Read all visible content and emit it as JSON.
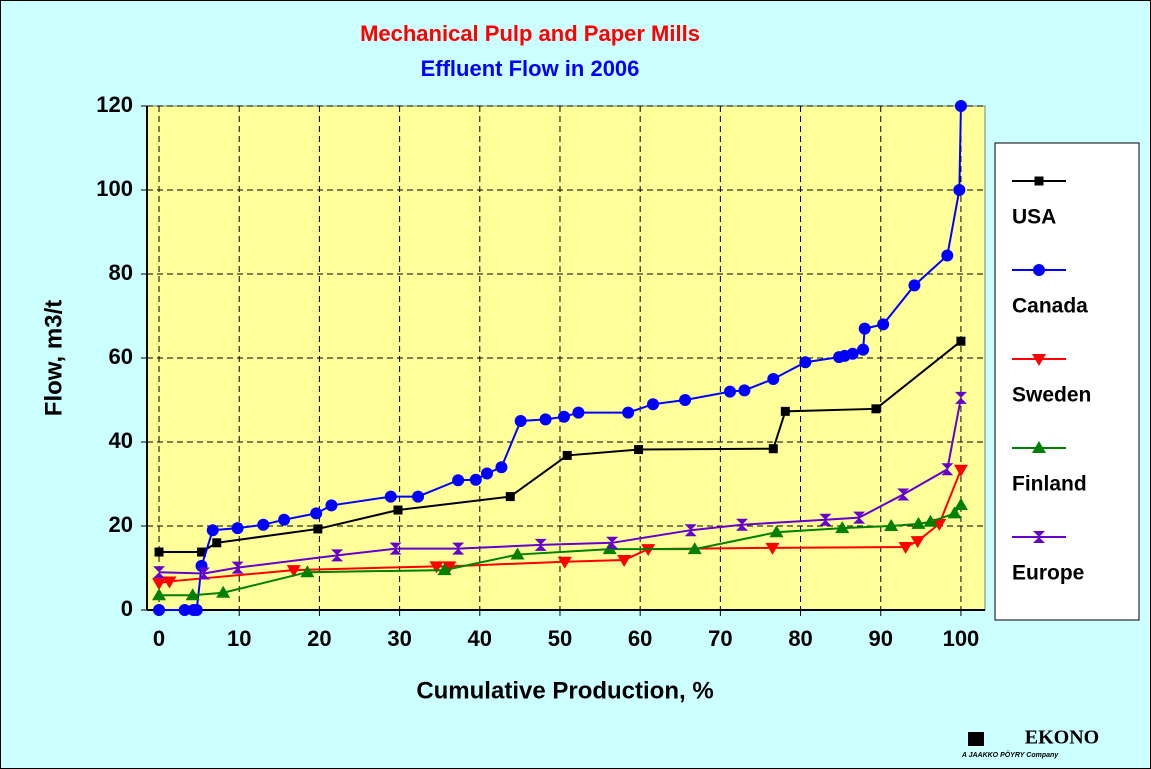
{
  "chart_data": {
    "type": "line",
    "title": "Mechanical Pulp and Paper Mills",
    "subtitle": "Effluent Flow in 2006",
    "x_label": "Cumulative Production, %",
    "y_label": "Flow, m3/t",
    "logo": "EKONO",
    "logo_subtitle": "A JAAKKO PÖYRY Company",
    "xlim": [
      -1.5,
      103
    ],
    "ylim": [
      0,
      120
    ],
    "xticks": [
      0,
      10,
      20,
      30,
      40,
      50,
      60,
      70,
      80,
      90,
      100
    ],
    "yticks": [
      0,
      20,
      40,
      60,
      80,
      100,
      120
    ],
    "grid": true,
    "legend": "right",
    "series": [
      {
        "name": "USA",
        "color": "#000000",
        "marker": "square",
        "x": [
          0,
          5.3,
          7.2,
          19.8,
          29.8,
          43.8,
          50.9,
          59.8,
          76.6,
          78.1,
          89.4,
          100
        ],
        "values": [
          13.8,
          13.8,
          16,
          19.3,
          23.8,
          27,
          36.8,
          38.2,
          38.4,
          47.3,
          47.9,
          64
        ]
      },
      {
        "name": "Canada",
        "color": "#0000ff",
        "marker": "circle",
        "x": [
          0,
          3.2,
          4.3,
          4.7,
          5.3,
          6.7,
          9.8,
          13,
          15.6,
          19.6,
          21.5,
          28.9,
          32.3,
          37.3,
          39.5,
          40.9,
          42.7,
          45.1,
          48.2,
          50.5,
          52.3,
          58.5,
          61.6,
          65.6,
          71.2,
          73,
          76.6,
          80.6,
          84.8,
          85.5,
          86.5,
          87.8,
          88,
          90.3,
          94.2,
          98.3,
          99.8,
          100
        ],
        "values": [
          0,
          0,
          0,
          0,
          10.5,
          19,
          19.5,
          20.3,
          21.5,
          23,
          24.9,
          27,
          27,
          30.9,
          31,
          32.5,
          34,
          45,
          45.4,
          46,
          47,
          47,
          49,
          50,
          52,
          52.3,
          55,
          59,
          60.2,
          60.5,
          61,
          62,
          67,
          68,
          77.3,
          84.4,
          100,
          120
        ]
      },
      {
        "name": "Sweden",
        "color": "#ff0000",
        "marker": "triangle-down",
        "x": [
          0,
          1.3,
          16.8,
          34.6,
          36.2,
          50.6,
          58,
          61,
          76.5,
          93.1,
          94.6,
          97.3,
          100
        ],
        "values": [
          6.4,
          6.8,
          9.5,
          10.4,
          10.4,
          11.5,
          11.9,
          14.5,
          14.8,
          15,
          16.4,
          20.5,
          33.4
        ]
      },
      {
        "name": "Finland",
        "color": "#008000",
        "marker": "triangle-up",
        "x": [
          0,
          4.2,
          8,
          18.5,
          35.6,
          44.7,
          56.2,
          66.8,
          77,
          85.2,
          91.3,
          94.7,
          96.2,
          99.2,
          100
        ],
        "values": [
          3.5,
          3.5,
          4.1,
          9,
          9.5,
          13.2,
          14.5,
          14.5,
          18.5,
          19.5,
          20,
          20.5,
          21,
          23,
          25
        ]
      },
      {
        "name": "Europe",
        "color": "#6600cc",
        "marker": "bowtie",
        "x": [
          0,
          5.6,
          9.8,
          22.2,
          29.5,
          37.3,
          47.6,
          56.5,
          66.3,
          72.7,
          83.1,
          87.3,
          92.8,
          98.3,
          100
        ],
        "values": [
          9,
          8.7,
          10.1,
          13,
          14.6,
          14.6,
          15.5,
          16,
          19,
          20.3,
          21.5,
          22,
          27.5,
          33.5,
          50.5
        ]
      }
    ]
  }
}
